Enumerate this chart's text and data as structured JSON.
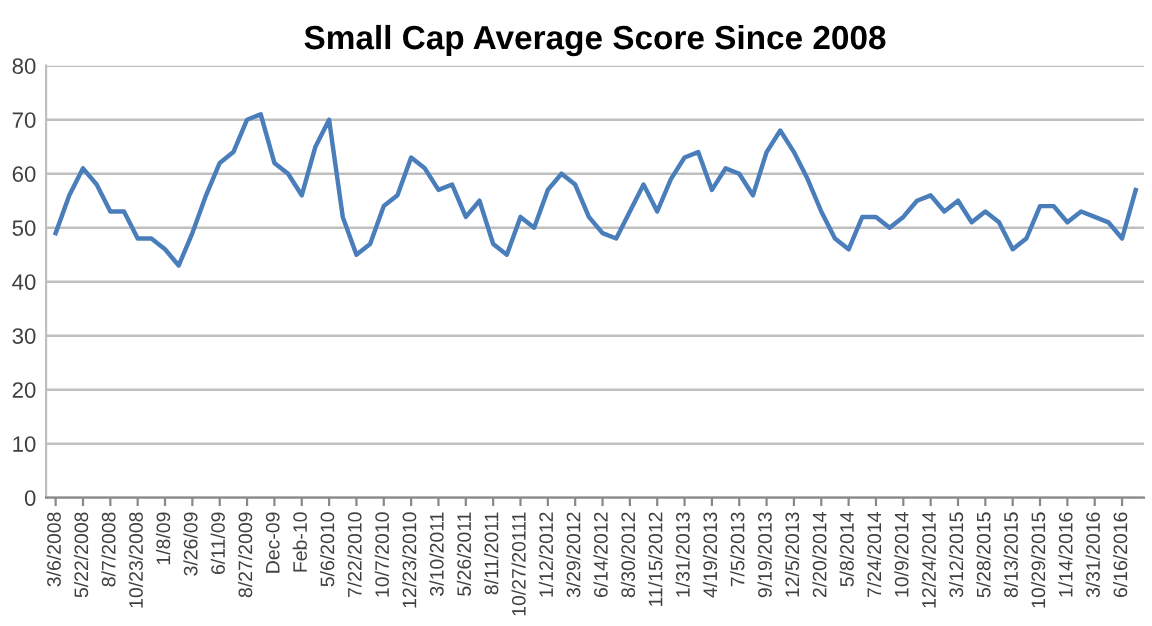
{
  "chart_data": {
    "type": "line",
    "title": "Small Cap Average Score Since 2008",
    "categories": [
      "3/6/2008",
      null,
      "5/22/2008",
      null,
      "8/7/2008",
      null,
      "10/23/2008",
      null,
      "1/8/09",
      null,
      "3/26/09",
      null,
      "6/11/09",
      null,
      "8/27/2009",
      null,
      "Dec-09",
      null,
      "Feb-10",
      null,
      "5/6/2010",
      null,
      "7/22/2010",
      null,
      "10/7/2010",
      null,
      "12/23/2010",
      null,
      "3/10/2011",
      null,
      "5/26/2011",
      null,
      "8/11/2011",
      null,
      "10/27/20111",
      null,
      "1/12/2012",
      null,
      "3/29/2012",
      null,
      "6/14/2012",
      null,
      "8/30/2012",
      null,
      "11/15/2012",
      null,
      "1/31/2013",
      null,
      "4/19/2013",
      null,
      "7/5/2013",
      null,
      "9/19/2013",
      null,
      "12/5/2013",
      null,
      "2/20/2014",
      null,
      "5/8/2014",
      null,
      "7/24/2014",
      null,
      "10/9/2014",
      null,
      "12/24/2014",
      null,
      "3/12/2015",
      null,
      "5/28/2015",
      null,
      "8/13/2015",
      null,
      "10/29/2015",
      null,
      "1/14/2016",
      null,
      "3/31/2016",
      null,
      "6/16/2016",
      null
    ],
    "series": [
      {
        "color": "#4a7ebb",
        "values": [
          49,
          56,
          61,
          58,
          53,
          53,
          48,
          48,
          46,
          43,
          49,
          56,
          62,
          64,
          70,
          71,
          62,
          60,
          56,
          65,
          70,
          52,
          45,
          47,
          54,
          56,
          63,
          61,
          57,
          58,
          52,
          55,
          47,
          45,
          52,
          50,
          57,
          60,
          58,
          52,
          49,
          48,
          53,
          58,
          53,
          59,
          63,
          64,
          57,
          61,
          60,
          56,
          64,
          68,
          64,
          59,
          53,
          48,
          46,
          52,
          52,
          50,
          52,
          55,
          56,
          53,
          55,
          51,
          53,
          51,
          46,
          48,
          54,
          54,
          51,
          53,
          52,
          51,
          48,
          57
        ]
      }
    ],
    "ylim": [
      0,
      80
    ],
    "yticks": [
      0,
      10,
      20,
      30,
      40,
      50,
      60,
      70,
      80
    ],
    "grid": "y",
    "marker": "none",
    "line_style": "solid"
  }
}
